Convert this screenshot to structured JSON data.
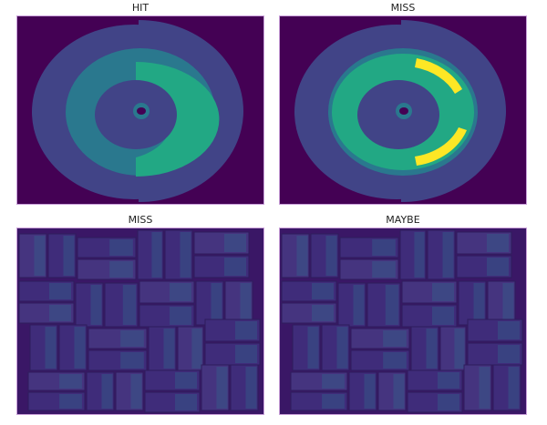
{
  "panels": [
    {
      "title": "HIT",
      "kind": "rings",
      "highlight": "green"
    },
    {
      "title": "MISS",
      "kind": "rings",
      "highlight": "yellow"
    },
    {
      "title": "MISS",
      "kind": "tiles"
    },
    {
      "title": "MAYBE",
      "kind": "tiles"
    }
  ],
  "colors": {
    "background": "#440154",
    "outer": "#414487",
    "middle": "#2a788e",
    "green": "#22a884",
    "yellow": "#fde725",
    "tile": "#3b2f7a"
  }
}
